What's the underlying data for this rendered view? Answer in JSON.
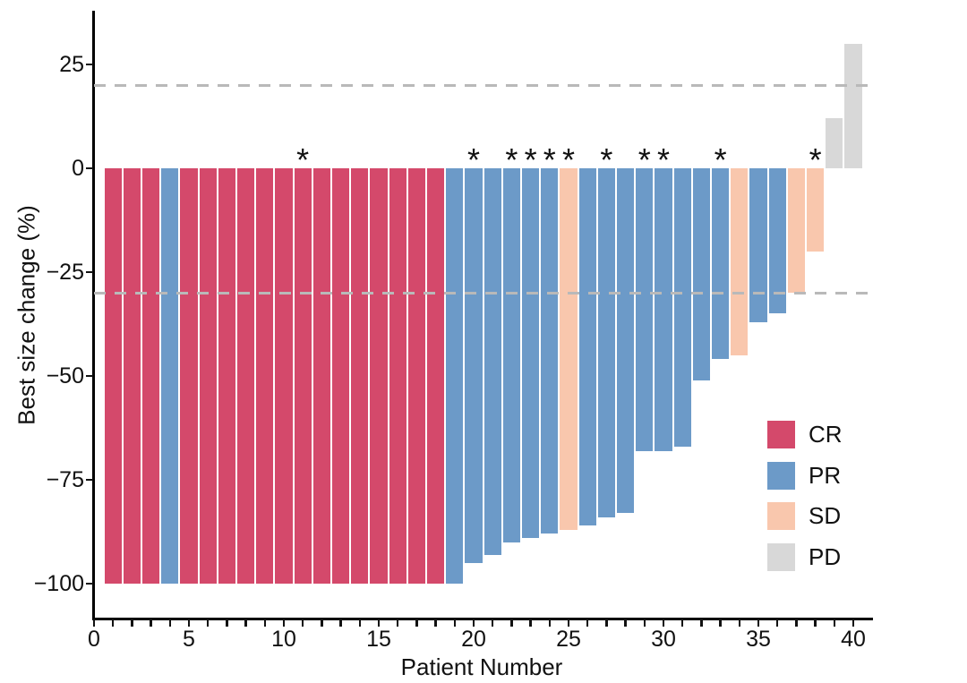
{
  "chart_data": {
    "type": "bar",
    "subtype": "waterfall-best-response",
    "title": "",
    "xlabel": "Patient Number",
    "ylabel": "Best size change (%)",
    "marker_symbol": "*",
    "xlim": [
      0,
      41
    ],
    "ylim": [
      -108,
      37
    ],
    "x_tick_labels": [
      {
        "v": 0,
        "label": "0"
      },
      {
        "v": 5,
        "label": "5"
      },
      {
        "v": 10,
        "label": "10"
      },
      {
        "v": 15,
        "label": "15"
      },
      {
        "v": 20,
        "label": "20"
      },
      {
        "v": 25,
        "label": "25"
      },
      {
        "v": 30,
        "label": "30"
      },
      {
        "v": 35,
        "label": "35"
      },
      {
        "v": 40,
        "label": "40"
      }
    ],
    "x_minor_tick_every": 1,
    "y_ticks": [
      {
        "v": 25,
        "label": "25"
      },
      {
        "v": 0,
        "label": "0"
      },
      {
        "v": -25,
        "label": "−25"
      },
      {
        "v": -50,
        "label": "−50"
      },
      {
        "v": -75,
        "label": "−75"
      },
      {
        "v": -100,
        "label": "−100"
      }
    ],
    "reference_lines": [
      20,
      -30
    ],
    "reference_line_color": "#b9b9b9",
    "colors": {
      "CR": "#d4496b",
      "PR": "#6c9ac8",
      "SD": "#f9c7ad",
      "PD": "#d8d8d8"
    },
    "legend": [
      {
        "label": "CR",
        "color": "#d4496b"
      },
      {
        "label": "PR",
        "color": "#6c9ac8"
      },
      {
        "label": "SD",
        "color": "#f9c7ad"
      },
      {
        "label": "PD",
        "color": "#d8d8d8"
      }
    ],
    "legend_position": "right-inside",
    "grid": false,
    "patients": [
      {
        "n": 1,
        "value": -100,
        "response": "CR",
        "star": false
      },
      {
        "n": 2,
        "value": -100,
        "response": "CR",
        "star": false
      },
      {
        "n": 3,
        "value": -100,
        "response": "CR",
        "star": false
      },
      {
        "n": 4,
        "value": -100,
        "response": "PR",
        "star": false
      },
      {
        "n": 5,
        "value": -100,
        "response": "CR",
        "star": false
      },
      {
        "n": 6,
        "value": -100,
        "response": "CR",
        "star": false
      },
      {
        "n": 7,
        "value": -100,
        "response": "CR",
        "star": false
      },
      {
        "n": 8,
        "value": -100,
        "response": "CR",
        "star": false
      },
      {
        "n": 9,
        "value": -100,
        "response": "CR",
        "star": false
      },
      {
        "n": 10,
        "value": -100,
        "response": "CR",
        "star": false
      },
      {
        "n": 11,
        "value": -100,
        "response": "CR",
        "star": true
      },
      {
        "n": 12,
        "value": -100,
        "response": "CR",
        "star": false
      },
      {
        "n": 13,
        "value": -100,
        "response": "CR",
        "star": false
      },
      {
        "n": 14,
        "value": -100,
        "response": "CR",
        "star": false
      },
      {
        "n": 15,
        "value": -100,
        "response": "CR",
        "star": false
      },
      {
        "n": 16,
        "value": -100,
        "response": "CR",
        "star": false
      },
      {
        "n": 17,
        "value": -100,
        "response": "CR",
        "star": false
      },
      {
        "n": 18,
        "value": -100,
        "response": "CR",
        "star": false
      },
      {
        "n": 19,
        "value": -100,
        "response": "PR",
        "star": false
      },
      {
        "n": 20,
        "value": -95,
        "response": "PR",
        "star": true
      },
      {
        "n": 21,
        "value": -93,
        "response": "PR",
        "star": false
      },
      {
        "n": 22,
        "value": -90,
        "response": "PR",
        "star": true
      },
      {
        "n": 23,
        "value": -89,
        "response": "PR",
        "star": true
      },
      {
        "n": 24,
        "value": -88,
        "response": "PR",
        "star": true
      },
      {
        "n": 25,
        "value": -87,
        "response": "SD",
        "star": true
      },
      {
        "n": 26,
        "value": -86,
        "response": "PR",
        "star": false
      },
      {
        "n": 27,
        "value": -84,
        "response": "PR",
        "star": true
      },
      {
        "n": 28,
        "value": -83,
        "response": "PR",
        "star": false
      },
      {
        "n": 29,
        "value": -68,
        "response": "PR",
        "star": true
      },
      {
        "n": 30,
        "value": -68,
        "response": "PR",
        "star": true
      },
      {
        "n": 31,
        "value": -67,
        "response": "PR",
        "star": false
      },
      {
        "n": 32,
        "value": -51,
        "response": "PR",
        "star": false
      },
      {
        "n": 33,
        "value": -46,
        "response": "PR",
        "star": true
      },
      {
        "n": 34,
        "value": -45,
        "response": "SD",
        "star": false
      },
      {
        "n": 35,
        "value": -37,
        "response": "PR",
        "star": false
      },
      {
        "n": 36,
        "value": -35,
        "response": "PR",
        "star": false
      },
      {
        "n": 37,
        "value": -30,
        "response": "SD",
        "star": false
      },
      {
        "n": 38,
        "value": -20,
        "response": "SD",
        "star": true
      },
      {
        "n": 39,
        "value": 12,
        "response": "PD",
        "star": false
      },
      {
        "n": 40,
        "value": 30,
        "response": "PD",
        "star": false
      }
    ]
  }
}
